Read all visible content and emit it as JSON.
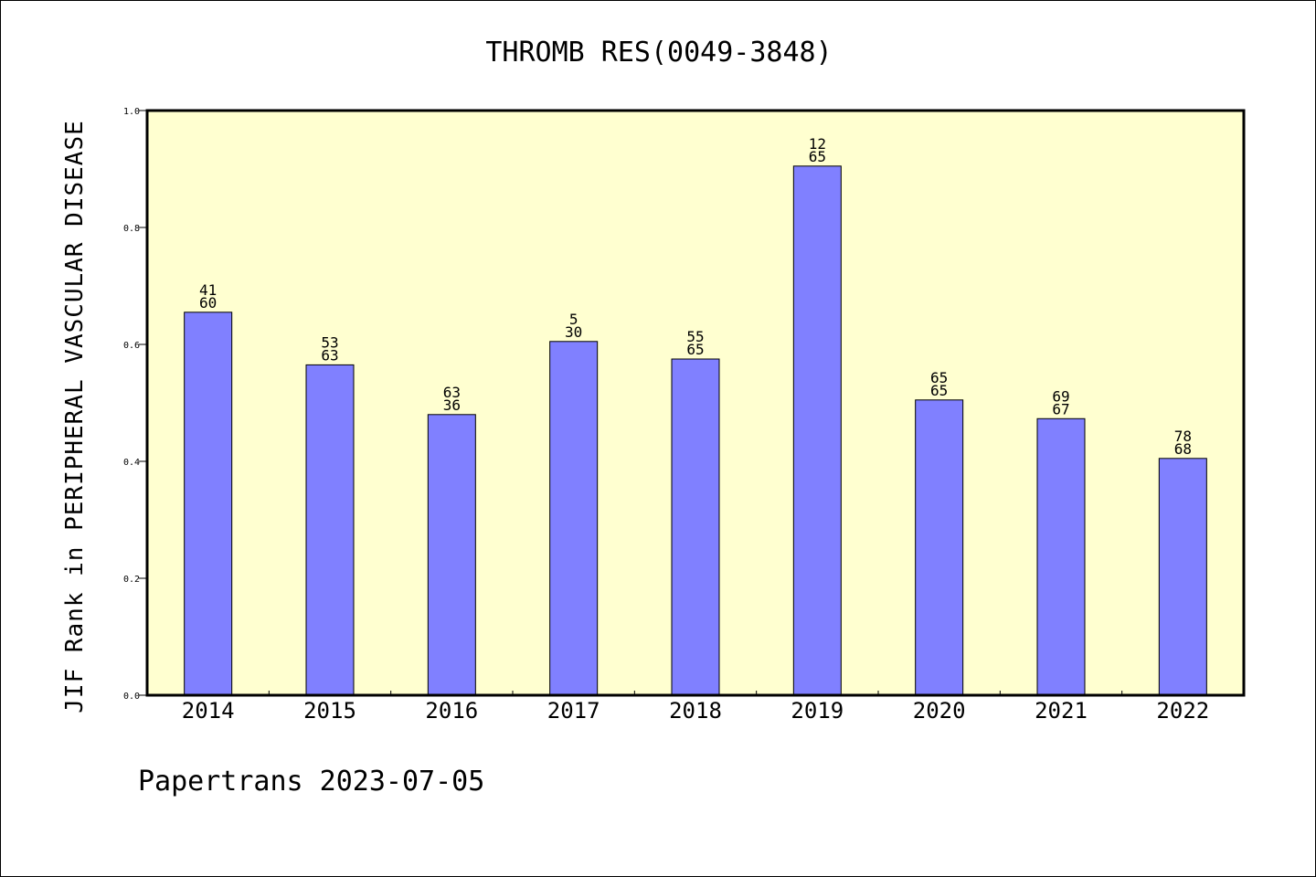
{
  "chart_data": {
    "type": "bar",
    "title": "THROMB RES(0049-3848)",
    "xlabel": "",
    "ylabel": "JIF Rank in PERIPHERAL VASCULAR DISEASE",
    "categories": [
      "2014",
      "2015",
      "2016",
      "2017",
      "2018",
      "2019",
      "2020",
      "2021",
      "2022"
    ],
    "values": [
      0.655,
      0.565,
      0.48,
      0.605,
      0.575,
      0.905,
      0.505,
      0.473,
      0.405
    ],
    "rank": [
      "41",
      "53",
      "63",
      "5",
      "55",
      "12",
      "65",
      "69",
      "78"
    ],
    "total": [
      "60",
      "63",
      "36",
      "30",
      "65",
      "65",
      "65",
      "67",
      "68"
    ],
    "ylim": [
      0,
      1.0
    ],
    "yticks": [
      "0.0",
      "0.2",
      "0.4",
      "0.6",
      "0.8",
      "1.0"
    ],
    "grid": false,
    "colors": {
      "bar": "#8080ff",
      "plot_background": "#ffffd0",
      "frame": "#000000"
    }
  },
  "footer": {
    "text": "Papertrans 2023-07-05"
  }
}
